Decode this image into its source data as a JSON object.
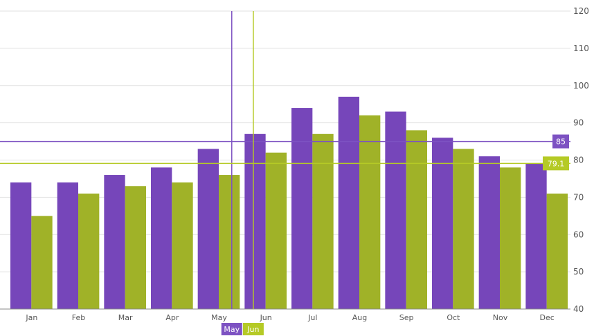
{
  "chart_data": {
    "type": "bar",
    "categories": [
      "Jan",
      "Feb",
      "Mar",
      "Apr",
      "May",
      "Jun",
      "Jul",
      "Aug",
      "Sep",
      "Oct",
      "Nov",
      "Dec"
    ],
    "series": [
      {
        "values": [
          74,
          74,
          76,
          78,
          83,
          87,
          94,
          97,
          93,
          86,
          81,
          79
        ],
        "color": "#7646BA"
      },
      {
        "values": [
          65,
          71,
          73,
          74,
          76,
          82,
          87,
          92,
          88,
          83,
          78,
          71
        ],
        "color": "#A0B228"
      }
    ],
    "ylim": [
      40,
      120
    ],
    "yticks": [
      40,
      50,
      60,
      70,
      80,
      90,
      100,
      110,
      120
    ],
    "y_axis_side": "right",
    "grid": true,
    "crosshairs": [
      {
        "category": "May",
        "value": 85,
        "value_label": "85",
        "color": "#7D52C2"
      },
      {
        "category": "Jun",
        "value": 79.1,
        "value_label": "79.1",
        "color": "#B5CA26"
      }
    ]
  }
}
